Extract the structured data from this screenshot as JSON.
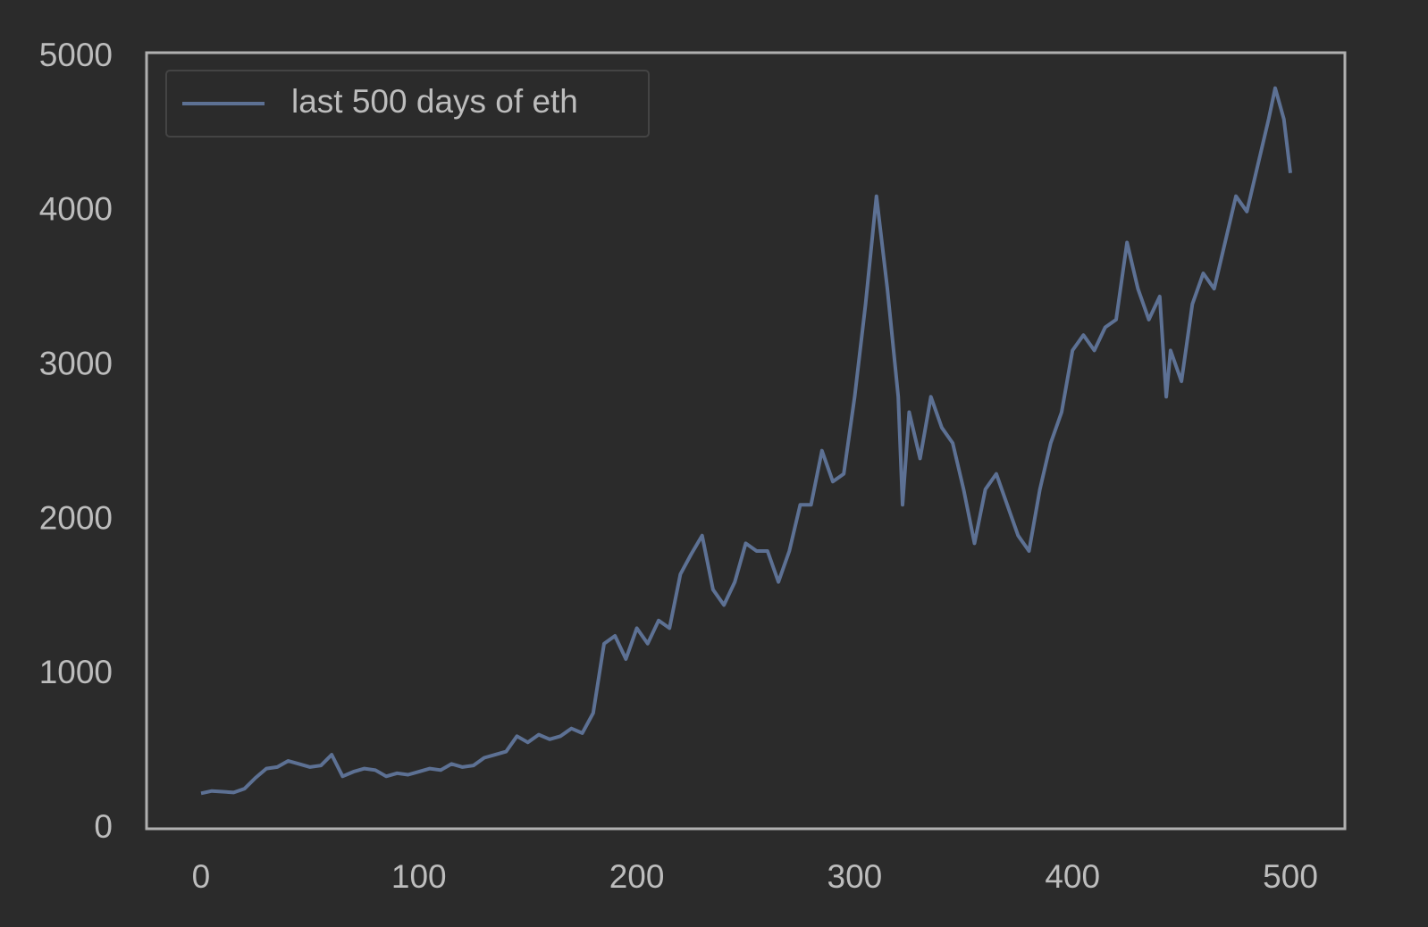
{
  "chart_data": {
    "type": "line",
    "x": [
      0,
      5,
      10,
      15,
      20,
      25,
      30,
      35,
      40,
      45,
      50,
      55,
      60,
      65,
      70,
      75,
      80,
      85,
      90,
      95,
      100,
      105,
      110,
      115,
      120,
      125,
      130,
      135,
      140,
      145,
      150,
      155,
      160,
      165,
      170,
      175,
      180,
      185,
      190,
      195,
      200,
      205,
      210,
      215,
      220,
      225,
      230,
      235,
      240,
      245,
      250,
      255,
      260,
      265,
      270,
      275,
      280,
      285,
      290,
      295,
      300,
      305,
      310,
      315,
      320,
      322,
      325,
      330,
      335,
      340,
      345,
      350,
      355,
      360,
      365,
      370,
      375,
      380,
      385,
      390,
      395,
      400,
      405,
      410,
      415,
      420,
      425,
      430,
      435,
      440,
      443,
      445,
      450,
      455,
      460,
      465,
      470,
      475,
      480,
      485,
      490,
      493,
      497,
      500
    ],
    "series": [
      {
        "name": "last 500 days of eth",
        "color": "#5d7194",
        "values": [
          230,
          245,
          240,
          235,
          260,
          330,
          390,
          400,
          440,
          420,
          400,
          410,
          480,
          340,
          370,
          390,
          380,
          340,
          360,
          350,
          370,
          390,
          380,
          420,
          400,
          410,
          460,
          480,
          500,
          600,
          560,
          610,
          580,
          600,
          650,
          620,
          750,
          1200,
          1250,
          1100,
          1300,
          1200,
          1350,
          1300,
          1650,
          1780,
          1900,
          1550,
          1450,
          1600,
          1850,
          1800,
          1800,
          1600,
          1800,
          2100,
          2100,
          2450,
          2250,
          2300,
          2800,
          3400,
          4100,
          3500,
          2800,
          2100,
          2700,
          2400,
          2800,
          2600,
          2500,
          2200,
          1850,
          2200,
          2300,
          2100,
          1900,
          1800,
          2200,
          2500,
          2700,
          3100,
          3200,
          3100,
          3250,
          3300,
          3800,
          3500,
          3300,
          3450,
          2800,
          3100,
          2900,
          3400,
          3600,
          3500,
          3800,
          4100,
          4000,
          4300,
          4600,
          4800,
          4600,
          4250
        ]
      }
    ],
    "xlim": [
      -25,
      525
    ],
    "ylim": [
      0,
      5030
    ],
    "xticks": [
      0,
      100,
      200,
      300,
      400,
      500
    ],
    "yticks": [
      0,
      1000,
      2000,
      3000,
      4000,
      5000
    ],
    "grid": false,
    "legend": "upper left"
  }
}
